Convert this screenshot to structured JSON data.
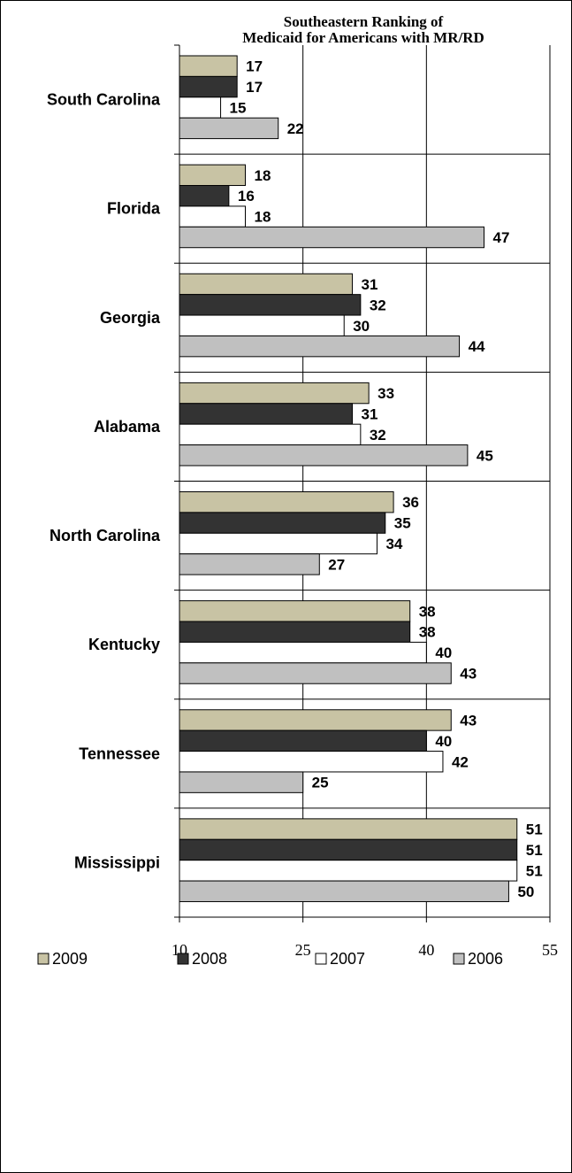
{
  "chart_data": {
    "type": "bar",
    "orientation": "horizontal",
    "title_lines": [
      "Southeastern Ranking of",
      "Medicaid for Americans with MR/RD"
    ],
    "categories": [
      "South Carolina",
      "Florida",
      "Georgia",
      "Alabama",
      "North Carolina",
      "Kentucky",
      "Tennessee",
      "Mississippi"
    ],
    "series": [
      {
        "name": "2009",
        "color": "#c8c3a4",
        "values": [
          17,
          18,
          31,
          33,
          36,
          38,
          43,
          51
        ]
      },
      {
        "name": "2008",
        "color": "#333333",
        "values": [
          17,
          16,
          32,
          31,
          35,
          38,
          40,
          51
        ]
      },
      {
        "name": "2007",
        "color": "#ffffff",
        "values": [
          15,
          18,
          30,
          32,
          34,
          40,
          42,
          51
        ]
      },
      {
        "name": "2006",
        "color": "#c0c0c0",
        "values": [
          22,
          47,
          44,
          45,
          27,
          43,
          25,
          50
        ]
      }
    ],
    "xaxis": {
      "min": 10,
      "max": 55,
      "ticks": [
        10,
        25,
        40,
        55
      ]
    },
    "grid": true,
    "legend_position": "bottom"
  }
}
